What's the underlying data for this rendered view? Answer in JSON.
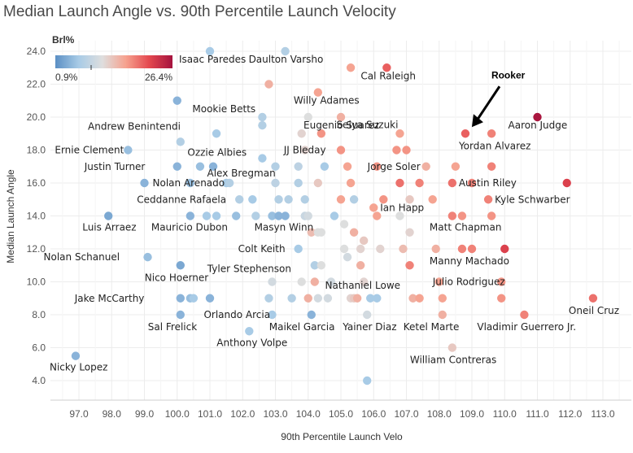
{
  "chart_data": {
    "type": "scatter",
    "title": "Median Launch Angle vs. 90th Percentile Launch Velocity",
    "xlabel": "90th Percentile Launch Velo",
    "ylabel": "Median Launch Angle",
    "xlim": [
      96.3,
      113.7
    ],
    "ylim": [
      2.6,
      25.0
    ],
    "xticks": [
      "97.0",
      "98.0",
      "99.0",
      "100.0",
      "101.0",
      "102.0",
      "103.0",
      "104.0",
      "105.0",
      "106.0",
      "107.0",
      "108.0",
      "109.0",
      "110.0",
      "111.0",
      "112.0",
      "113.0"
    ],
    "yticks": [
      "4.0",
      "6.0",
      "8.0",
      "10.0",
      "12.0",
      "14.0",
      "16.0",
      "18.0",
      "20.0",
      "22.0",
      "24.0"
    ],
    "grid": true,
    "color_legend": {
      "title": "Brl%",
      "min_label": "0.9%",
      "max_label": "26.4%",
      "min": 0.9,
      "max": 26.4,
      "colors": [
        "#5b8fc4",
        "#a8cbe6",
        "#dedede",
        "#f6a28f",
        "#e4484f",
        "#a5123e"
      ]
    },
    "callout": "Rooker",
    "points": [
      {
        "x": 101.0,
        "y": 24.0,
        "brl": 6
      },
      {
        "x": 103.3,
        "y": 24.0,
        "brl": 7
      },
      {
        "x": 105.3,
        "y": 23.0,
        "brl": 16
      },
      {
        "x": 106.4,
        "y": 23.0,
        "brl": 20
      },
      {
        "x": 102.8,
        "y": 22.0,
        "brl": 15
      },
      {
        "x": 104.3,
        "y": 21.5,
        "brl": 16
      },
      {
        "x": 100.0,
        "y": 21.0,
        "brl": 4
      },
      {
        "x": 104.0,
        "y": 20.0,
        "brl": 11
      },
      {
        "x": 105.0,
        "y": 20.0,
        "brl": 15
      },
      {
        "x": 102.6,
        "y": 20.0,
        "brl": 7
      },
      {
        "x": 102.6,
        "y": 19.5,
        "brl": 7
      },
      {
        "x": 103.8,
        "y": 19.0,
        "brl": 12
      },
      {
        "x": 104.4,
        "y": 19.0,
        "brl": 17
      },
      {
        "x": 106.8,
        "y": 19.0,
        "brl": 16
      },
      {
        "x": 101.2,
        "y": 19.0,
        "brl": 6
      },
      {
        "x": 108.8,
        "y": 19.0,
        "brl": 20
      },
      {
        "x": 109.6,
        "y": 19.0,
        "brl": 18
      },
      {
        "x": 111.0,
        "y": 20.0,
        "brl": 26
      },
      {
        "x": 100.1,
        "y": 18.5,
        "brl": 7
      },
      {
        "x": 105.0,
        "y": 18.0,
        "brl": 17
      },
      {
        "x": 103.9,
        "y": 18.0,
        "brl": 12
      },
      {
        "x": 106.7,
        "y": 18.0,
        "brl": 17
      },
      {
        "x": 107.0,
        "y": 18.0,
        "brl": 17
      },
      {
        "x": 98.5,
        "y": 18.0,
        "brl": 5
      },
      {
        "x": 102.6,
        "y": 17.5,
        "brl": 6
      },
      {
        "x": 100.0,
        "y": 17.0,
        "brl": 4
      },
      {
        "x": 100.7,
        "y": 17.0,
        "brl": 5
      },
      {
        "x": 101.1,
        "y": 17.0,
        "brl": 4
      },
      {
        "x": 103.0,
        "y": 17.0,
        "brl": 7
      },
      {
        "x": 103.7,
        "y": 17.0,
        "brl": 8
      },
      {
        "x": 104.5,
        "y": 17.0,
        "brl": 6
      },
      {
        "x": 105.2,
        "y": 17.0,
        "brl": 16
      },
      {
        "x": 106.1,
        "y": 17.0,
        "brl": 17
      },
      {
        "x": 107.6,
        "y": 17.0,
        "brl": 15
      },
      {
        "x": 108.5,
        "y": 17.0,
        "brl": 16
      },
      {
        "x": 109.6,
        "y": 17.0,
        "brl": 18
      },
      {
        "x": 99.0,
        "y": 16.0,
        "brl": 4
      },
      {
        "x": 100.4,
        "y": 16.0,
        "brl": 5
      },
      {
        "x": 101.5,
        "y": 16.0,
        "brl": 6
      },
      {
        "x": 101.6,
        "y": 16.0,
        "brl": 7
      },
      {
        "x": 103.0,
        "y": 16.0,
        "brl": 8
      },
      {
        "x": 103.7,
        "y": 16.0,
        "brl": 7
      },
      {
        "x": 104.3,
        "y": 16.0,
        "brl": 13
      },
      {
        "x": 105.3,
        "y": 16.0,
        "brl": 16
      },
      {
        "x": 106.8,
        "y": 16.0,
        "brl": 19
      },
      {
        "x": 107.4,
        "y": 16.0,
        "brl": 18
      },
      {
        "x": 108.4,
        "y": 16.0,
        "brl": 19
      },
      {
        "x": 109.0,
        "y": 16.0,
        "brl": 18
      },
      {
        "x": 111.9,
        "y": 16.0,
        "brl": 22
      },
      {
        "x": 101.9,
        "y": 15.0,
        "brl": 7
      },
      {
        "x": 102.3,
        "y": 15.0,
        "brl": 6
      },
      {
        "x": 103.1,
        "y": 15.0,
        "brl": 7
      },
      {
        "x": 103.4,
        "y": 15.0,
        "brl": 7
      },
      {
        "x": 103.9,
        "y": 15.0,
        "brl": 7
      },
      {
        "x": 105.0,
        "y": 15.0,
        "brl": 16
      },
      {
        "x": 105.4,
        "y": 15.0,
        "brl": 7
      },
      {
        "x": 106.3,
        "y": 15.0,
        "brl": 17
      },
      {
        "x": 107.1,
        "y": 15.0,
        "brl": 13
      },
      {
        "x": 107.8,
        "y": 15.0,
        "brl": 16
      },
      {
        "x": 109.5,
        "y": 15.0,
        "brl": 18
      },
      {
        "x": 106.0,
        "y": 14.5,
        "brl": 16
      },
      {
        "x": 97.9,
        "y": 14.0,
        "brl": 3
      },
      {
        "x": 100.4,
        "y": 14.0,
        "brl": 4
      },
      {
        "x": 100.9,
        "y": 14.0,
        "brl": 6
      },
      {
        "x": 101.2,
        "y": 14.0,
        "brl": 6
      },
      {
        "x": 101.8,
        "y": 14.0,
        "brl": 5
      },
      {
        "x": 102.4,
        "y": 14.0,
        "brl": 7
      },
      {
        "x": 102.9,
        "y": 14.0,
        "brl": 5
      },
      {
        "x": 103.1,
        "y": 14.0,
        "brl": 4
      },
      {
        "x": 103.3,
        "y": 14.0,
        "brl": 4
      },
      {
        "x": 103.9,
        "y": 14.0,
        "brl": 9
      },
      {
        "x": 104.0,
        "y": 14.0,
        "brl": 10
      },
      {
        "x": 104.8,
        "y": 14.0,
        "brl": 6
      },
      {
        "x": 106.1,
        "y": 14.0,
        "brl": 16
      },
      {
        "x": 106.8,
        "y": 14.0,
        "brl": 11
      },
      {
        "x": 108.4,
        "y": 14.0,
        "brl": 18
      },
      {
        "x": 108.7,
        "y": 14.0,
        "brl": 17
      },
      {
        "x": 109.6,
        "y": 14.0,
        "brl": 17
      },
      {
        "x": 105.1,
        "y": 13.5,
        "brl": 11
      },
      {
        "x": 104.1,
        "y": 13.0,
        "brl": 14
      },
      {
        "x": 104.3,
        "y": 13.0,
        "brl": 11
      },
      {
        "x": 104.4,
        "y": 13.0,
        "brl": 11
      },
      {
        "x": 105.4,
        "y": 13.0,
        "brl": 15
      },
      {
        "x": 107.1,
        "y": 13.0,
        "brl": 12
      },
      {
        "x": 105.7,
        "y": 12.5,
        "brl": 13
      },
      {
        "x": 103.7,
        "y": 12.0,
        "brl": 6
      },
      {
        "x": 105.1,
        "y": 12.0,
        "brl": 11
      },
      {
        "x": 105.6,
        "y": 12.0,
        "brl": 12
      },
      {
        "x": 106.2,
        "y": 12.0,
        "brl": 12
      },
      {
        "x": 106.9,
        "y": 12.0,
        "brl": 14
      },
      {
        "x": 107.9,
        "y": 12.0,
        "brl": 15
      },
      {
        "x": 108.7,
        "y": 12.0,
        "brl": 18
      },
      {
        "x": 109.0,
        "y": 12.0,
        "brl": 18
      },
      {
        "x": 110.0,
        "y": 12.0,
        "brl": 22
      },
      {
        "x": 105.2,
        "y": 11.5,
        "brl": 10
      },
      {
        "x": 99.1,
        "y": 11.5,
        "brl": 5
      },
      {
        "x": 100.1,
        "y": 11.0,
        "brl": 3
      },
      {
        "x": 104.2,
        "y": 11.0,
        "brl": 7
      },
      {
        "x": 104.4,
        "y": 11.0,
        "brl": 11
      },
      {
        "x": 105.6,
        "y": 11.0,
        "brl": 15
      },
      {
        "x": 107.1,
        "y": 11.0,
        "brl": 18
      },
      {
        "x": 102.9,
        "y": 10.0,
        "brl": 10
      },
      {
        "x": 103.8,
        "y": 10.0,
        "brl": 11
      },
      {
        "x": 104.2,
        "y": 10.0,
        "brl": 15
      },
      {
        "x": 104.7,
        "y": 10.0,
        "brl": 10
      },
      {
        "x": 105.7,
        "y": 10.0,
        "brl": 12
      },
      {
        "x": 108.0,
        "y": 10.0,
        "brl": 16
      },
      {
        "x": 109.9,
        "y": 10.0,
        "brl": 17
      },
      {
        "x": 100.1,
        "y": 9.0,
        "brl": 4
      },
      {
        "x": 100.4,
        "y": 9.0,
        "brl": 5
      },
      {
        "x": 100.5,
        "y": 9.0,
        "brl": 6
      },
      {
        "x": 101.0,
        "y": 9.0,
        "brl": 4
      },
      {
        "x": 102.8,
        "y": 9.0,
        "brl": 7
      },
      {
        "x": 103.5,
        "y": 9.0,
        "brl": 7
      },
      {
        "x": 104.0,
        "y": 9.0,
        "brl": 15
      },
      {
        "x": 104.3,
        "y": 9.0,
        "brl": 10
      },
      {
        "x": 104.6,
        "y": 9.0,
        "brl": 10
      },
      {
        "x": 105.3,
        "y": 9.0,
        "brl": 12
      },
      {
        "x": 105.4,
        "y": 9.0,
        "brl": 13
      },
      {
        "x": 105.5,
        "y": 9.0,
        "brl": 15
      },
      {
        "x": 105.9,
        "y": 9.0,
        "brl": 6
      },
      {
        "x": 106.1,
        "y": 9.0,
        "brl": 6
      },
      {
        "x": 107.2,
        "y": 9.0,
        "brl": 15
      },
      {
        "x": 107.4,
        "y": 9.0,
        "brl": 16
      },
      {
        "x": 108.1,
        "y": 9.0,
        "brl": 16
      },
      {
        "x": 109.9,
        "y": 9.0,
        "brl": 17
      },
      {
        "x": 112.7,
        "y": 9.0,
        "brl": 19
      },
      {
        "x": 100.1,
        "y": 8.0,
        "brl": 4
      },
      {
        "x": 102.9,
        "y": 8.0,
        "brl": 6
      },
      {
        "x": 104.1,
        "y": 8.0,
        "brl": 4
      },
      {
        "x": 105.8,
        "y": 8.0,
        "brl": 10
      },
      {
        "x": 108.1,
        "y": 8.0,
        "brl": 15
      },
      {
        "x": 110.6,
        "y": 8.0,
        "brl": 18
      },
      {
        "x": 102.2,
        "y": 7.0,
        "brl": 6
      },
      {
        "x": 108.4,
        "y": 6.0,
        "brl": 13
      },
      {
        "x": 96.9,
        "y": 5.5,
        "brl": 4
      },
      {
        "x": 105.8,
        "y": 4.0,
        "brl": 6
      }
    ],
    "labels": [
      {
        "text": "Isaac Paredes",
        "x": 101.0,
        "y": 24.0
      },
      {
        "text": "Daulton Varsho",
        "x": 103.3,
        "y": 24.0
      },
      {
        "text": "Cal Raleigh",
        "x": 106.4,
        "y": 23.0
      },
      {
        "text": "Willy Adames",
        "x": 104.3,
        "y": 21.5
      },
      {
        "text": "Mookie Betts",
        "x": 102.6,
        "y": 20.0
      },
      {
        "text": "Eugenio Suarez",
        "x": 105.0,
        "y": 20.0
      },
      {
        "text": "Andrew Benintendi",
        "x": 101.2,
        "y": 19.0
      },
      {
        "text": "Seiya Suzuki",
        "x": 106.8,
        "y": 19.0
      },
      {
        "text": "Aaron Judge",
        "x": 111.0,
        "y": 20.0
      },
      {
        "text": "Ernie Clement",
        "x": 98.5,
        "y": 18.0
      },
      {
        "text": "Ozzie Albies",
        "x": 102.6,
        "y": 17.5
      },
      {
        "text": "JJ Bleday",
        "x": 103.9,
        "y": 18.0
      },
      {
        "text": "Yordan Alvarez",
        "x": 108.8,
        "y": 19.0
      },
      {
        "text": "Justin Turner",
        "x": 100.0,
        "y": 17.0
      },
      {
        "text": "Alex Bregman",
        "x": 103.0,
        "y": 17.0
      },
      {
        "text": "Jorge Soler",
        "x": 107.6,
        "y": 17.0
      },
      {
        "text": "Nolan Arenado",
        "x": 99.0,
        "y": 16.0
      },
      {
        "text": "Austin Riley",
        "x": 108.4,
        "y": 16.0
      },
      {
        "text": "Ceddanne Rafaela",
        "x": 101.9,
        "y": 15.0
      },
      {
        "text": "Kyle Schwarber",
        "x": 109.5,
        "y": 15.0
      },
      {
        "text": "Ian Happ",
        "x": 106.0,
        "y": 14.5
      },
      {
        "text": "Luis Arraez",
        "x": 97.9,
        "y": 14.0
      },
      {
        "text": "Mauricio Dubon",
        "x": 100.4,
        "y": 14.0
      },
      {
        "text": "Masyn Winn",
        "x": 103.3,
        "y": 14.0
      },
      {
        "text": "Matt Chapman",
        "x": 108.7,
        "y": 14.0
      },
      {
        "text": "Colt Keith",
        "x": 103.7,
        "y": 12.0
      },
      {
        "text": "Nolan Schanuel",
        "x": 99.1,
        "y": 11.5
      },
      {
        "text": "Manny Machado",
        "x": 108.7,
        "y": 12.0
      },
      {
        "text": "Tyler Stephenson",
        "x": 104.2,
        "y": 11.0
      },
      {
        "text": "Nico Hoerner",
        "x": 100.1,
        "y": 11.0
      },
      {
        "text": "Julio Rodriguez",
        "x": 108.0,
        "y": 10.0
      },
      {
        "text": "Nathaniel Lowe",
        "x": 107.2,
        "y": 9.0
      },
      {
        "text": "Jake McCarthy",
        "x": 100.1,
        "y": 9.0
      },
      {
        "text": "Oneil Cruz",
        "x": 112.7,
        "y": 9.0
      },
      {
        "text": "Orlando Arcia",
        "x": 102.9,
        "y": 8.0
      },
      {
        "text": "Sal Frelick",
        "x": 100.1,
        "y": 8.0
      },
      {
        "text": "Maikel Garcia",
        "x": 104.1,
        "y": 8.0
      },
      {
        "text": "Yainer Diaz",
        "x": 105.8,
        "y": 8.0
      },
      {
        "text": "Ketel Marte",
        "x": 108.1,
        "y": 8.0
      },
      {
        "text": "Vladimir Guerrero Jr.",
        "x": 110.6,
        "y": 8.0
      },
      {
        "text": "Anthony Volpe",
        "x": 102.2,
        "y": 7.0
      },
      {
        "text": "William Contreras",
        "x": 108.4,
        "y": 6.0
      },
      {
        "text": "Nicky Lopez",
        "x": 96.9,
        "y": 5.5
      }
    ],
    "callout_point": {
      "x": 108.8,
      "y": 19.0
    }
  }
}
